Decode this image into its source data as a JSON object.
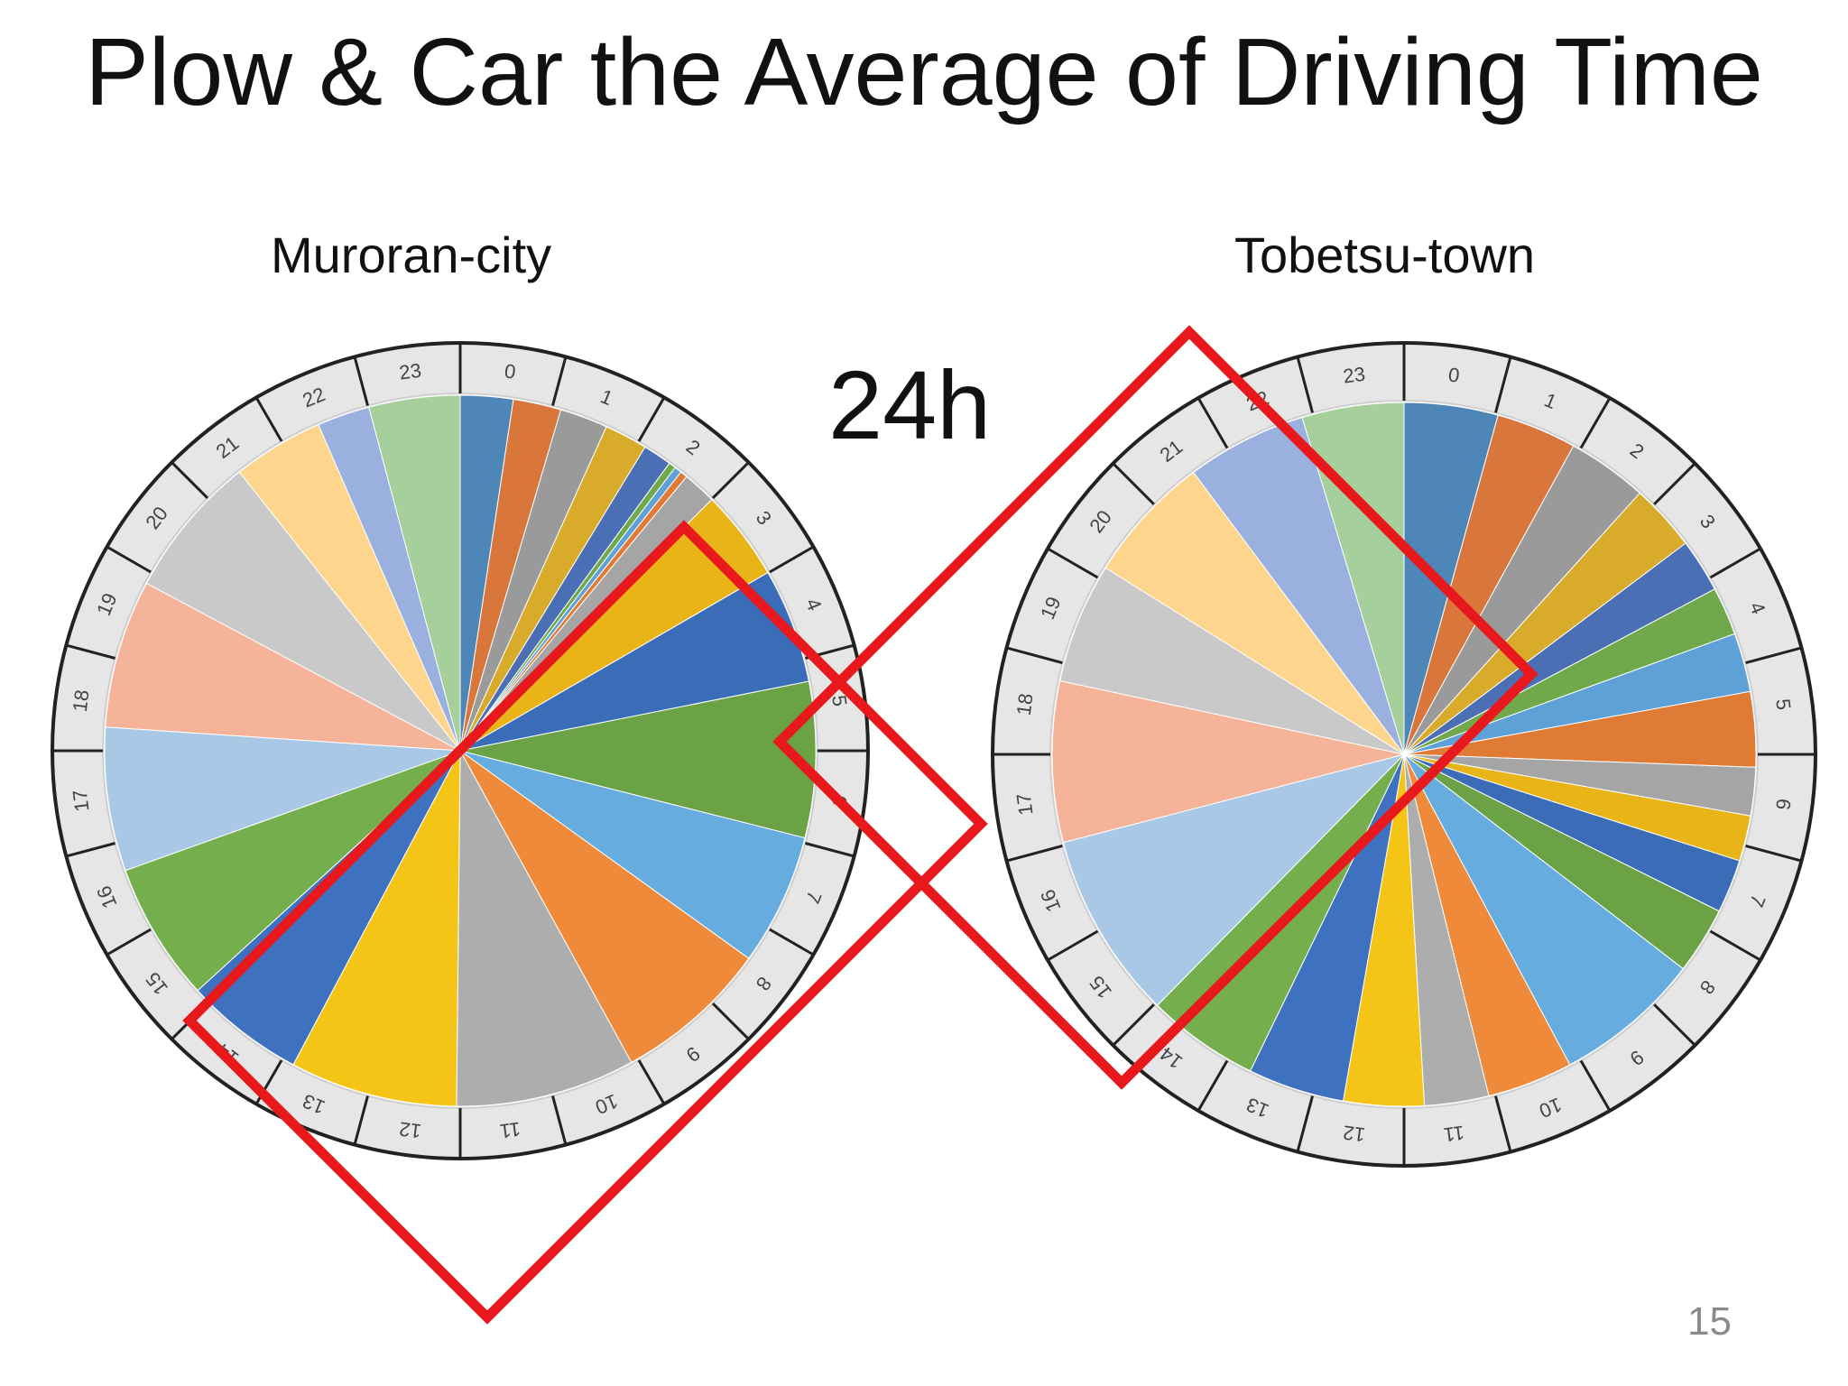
{
  "slide": {
    "title": "Plow & Car the Average of Driving Time",
    "callout": "24h",
    "page_number": "15"
  },
  "colors": {
    "highlight_outline": "#e8191c",
    "palette": [
      "#4e86b8",
      "#d9763c",
      "#9a9a9a",
      "#d8ab2a",
      "#4a6fb5",
      "#6fa94c",
      "#5ea1d7",
      "#e07b35",
      "#a5a5a5",
      "#e9b418",
      "#3b6cb8",
      "#6ba246",
      "#66acdf",
      "#ee8a3a",
      "#adadad",
      "#f4c416",
      "#3f71c1",
      "#74ae4d",
      "#a9c8e6",
      "#f5b49a",
      "#c9c9c9",
      "#fdd58d",
      "#9ab0df",
      "#a7cf9b"
    ]
  },
  "chart_data": [
    {
      "type": "pie",
      "title": "Muroran-city",
      "categories": [
        "0",
        "1",
        "2",
        "3",
        "4",
        "5",
        "6",
        "7",
        "8",
        "9",
        "10",
        "11",
        "12",
        "13",
        "14",
        "15",
        "16",
        "17",
        "18",
        "19",
        "20",
        "21",
        "22",
        "23"
      ],
      "values": [
        2.2,
        2.0,
        2.0,
        1.8,
        1.2,
        0.3,
        0.3,
        0.3,
        1.4,
        3.8,
        4.8,
        6.5,
        5.5,
        6.5,
        7.5,
        7.0,
        5.0,
        5.8,
        6.0,
        6.2,
        6.0,
        3.8,
        2.2,
        3.8
      ]
    },
    {
      "type": "pie",
      "title": "Tobetsu-town",
      "categories": [
        "0",
        "1",
        "2",
        "3",
        "4",
        "5",
        "6",
        "7",
        "8",
        "9",
        "10",
        "11",
        "12",
        "13",
        "14",
        "15",
        "16",
        "17",
        "18",
        "19",
        "20",
        "21",
        "22",
        "23"
      ],
      "values": [
        3.5,
        3.0,
        3.0,
        2.5,
        2.0,
        1.8,
        2.2,
        2.8,
        1.8,
        1.7,
        2.0,
        2.5,
        5.5,
        3.2,
        2.4,
        3.0,
        3.6,
        4.2,
        7.0,
        6.0,
        4.5,
        4.8,
        4.5,
        3.8
      ]
    }
  ]
}
